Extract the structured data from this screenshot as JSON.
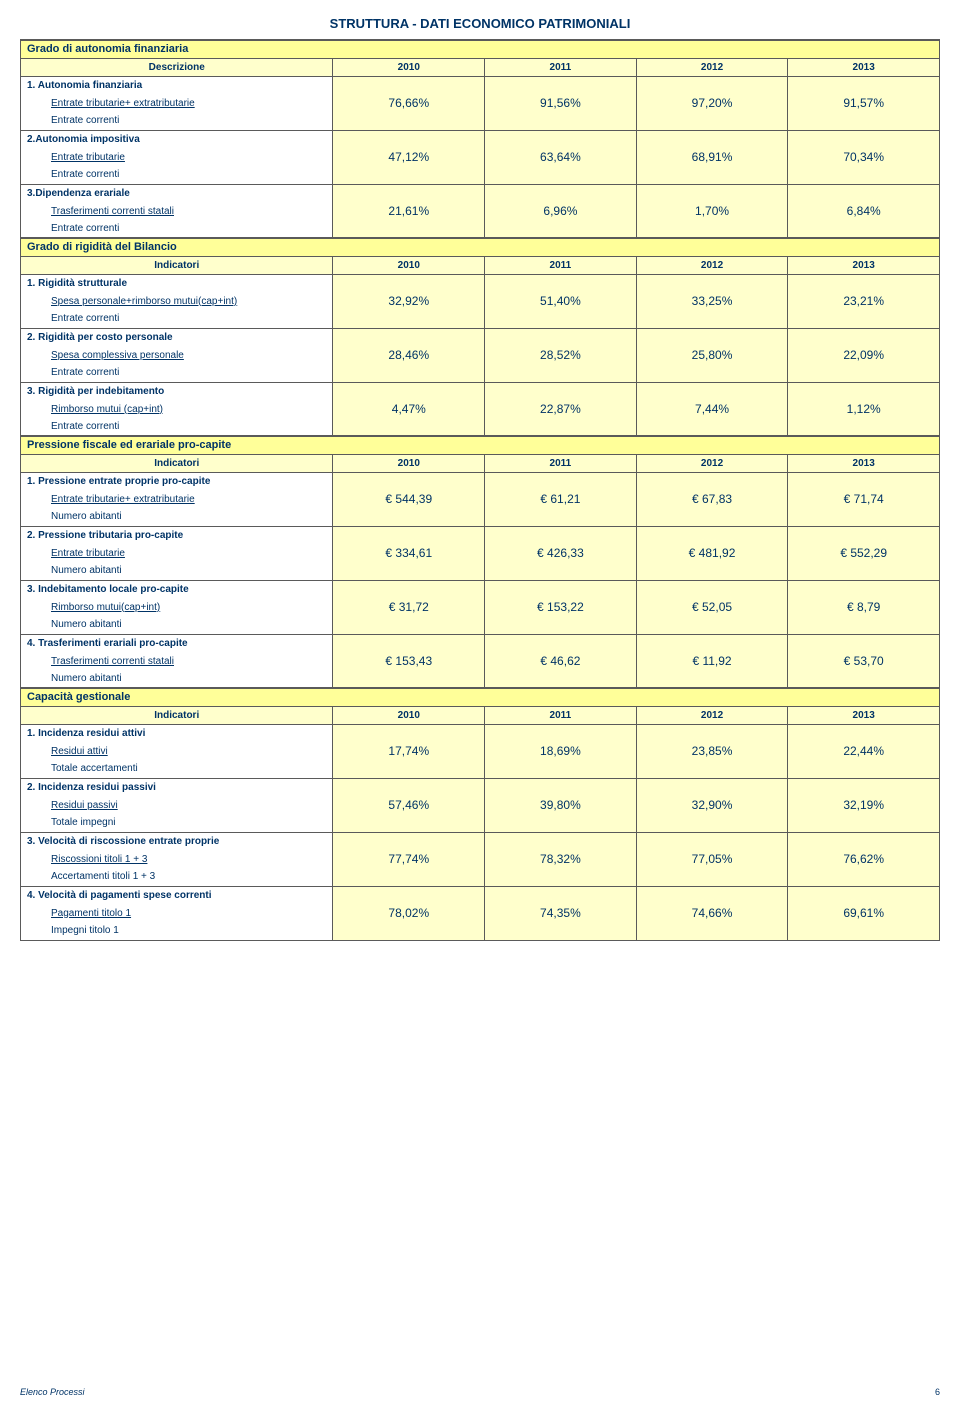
{
  "title": "STRUTTURA - DATI ECONOMICO PATRIMONIALI",
  "years": [
    "2010",
    "2011",
    "2012",
    "2013"
  ],
  "sections": [
    {
      "name": "Grado di autonomia finanziaria",
      "header_label": "Descrizione",
      "items": [
        {
          "head": "1. Autonomia finanziaria",
          "num": "Entrate tributarie+ extratributarie",
          "den": "Entrate correnti",
          "vals": [
            "76,66%",
            "91,56%",
            "97,20%",
            "91,57%"
          ]
        },
        {
          "head": "2.Autonomia impositiva",
          "num": "Entrate tributarie",
          "den": "Entrate correnti",
          "vals": [
            "47,12%",
            "63,64%",
            "68,91%",
            "70,34%"
          ]
        },
        {
          "head": "3.Dipendenza erariale",
          "num": "Trasferimenti correnti statali",
          "den": "Entrate correnti",
          "vals": [
            "21,61%",
            "6,96%",
            "1,70%",
            "6,84%"
          ]
        }
      ]
    },
    {
      "name": "Grado di rigidità del Bilancio",
      "header_label": "Indicatori",
      "items": [
        {
          "head": "1. Rigidità strutturale",
          "num": "Spesa personale+rimborso mutui(cap+int)",
          "den": "Entrate correnti",
          "vals": [
            "32,92%",
            "51,40%",
            "33,25%",
            "23,21%"
          ]
        },
        {
          "head": "2. Rigidità per costo personale",
          "num": "Spesa complessiva personale",
          "den": "Entrate correnti",
          "vals": [
            "28,46%",
            "28,52%",
            "25,80%",
            "22,09%"
          ]
        },
        {
          "head": "3. Rigidità per indebitamento",
          "num": "Rimborso mutui (cap+int)",
          "den": "Entrate correnti",
          "vals": [
            "4,47%",
            "22,87%",
            "7,44%",
            "1,12%"
          ]
        }
      ]
    },
    {
      "name": "Pressione fiscale ed erariale pro-capite",
      "header_label": "Indicatori",
      "items": [
        {
          "head": "1. Pressione entrate proprie pro-capite",
          "num": "Entrate tributarie+ extratributarie",
          "den": "Numero abitanti",
          "vals": [
            "€ 544,39",
            "€ 61,21",
            "€ 67,83",
            "€ 71,74"
          ]
        },
        {
          "head": "2. Pressione tributaria pro-capite",
          "num": "Entrate tributarie",
          "den": "Numero abitanti",
          "vals": [
            "€ 334,61",
            "€ 426,33",
            "€ 481,92",
            "€ 552,29"
          ]
        },
        {
          "head": "3. Indebitamento locale pro-capite",
          "num": "Rimborso mutui(cap+int)",
          "den": "Numero abitanti",
          "vals": [
            "€ 31,72",
            "€ 153,22",
            "€ 52,05",
            "€ 8,79"
          ]
        },
        {
          "head": "4. Trasferimenti erariali pro-capite",
          "num": "Trasferimenti correnti statali",
          "den": "Numero abitanti",
          "vals": [
            "€ 153,43",
            "€ 46,62",
            "€ 11,92",
            "€ 53,70"
          ]
        }
      ]
    },
    {
      "name": "Capacità gestionale",
      "header_label": "Indicatori",
      "items": [
        {
          "head": "1. Incidenza residui attivi",
          "num": "Residui attivi",
          "den": "Totale accertamenti",
          "vals": [
            "17,74%",
            "18,69%",
            "23,85%",
            "22,44%"
          ]
        },
        {
          "head": "2. Incidenza residui passivi",
          "num": "Residui passivi",
          "den": "Totale impegni",
          "vals": [
            "57,46%",
            "39,80%",
            "32,90%",
            "32,19%"
          ]
        },
        {
          "head": "3. Velocità di riscossione entrate proprie",
          "num": "Riscossioni titoli 1 + 3",
          "den": "Accertamenti titoli 1 + 3",
          "vals": [
            "77,74%",
            "78,32%",
            "77,05%",
            "76,62%"
          ]
        },
        {
          "head": "4. Velocità di pagamenti spese correnti",
          "num": "Pagamenti titolo 1",
          "den": "Impegni titolo 1",
          "vals": [
            "78,02%",
            "74,35%",
            "74,66%",
            "69,61%"
          ]
        }
      ]
    }
  ],
  "footer": {
    "left": "Elenco Processi",
    "page": "6"
  }
}
